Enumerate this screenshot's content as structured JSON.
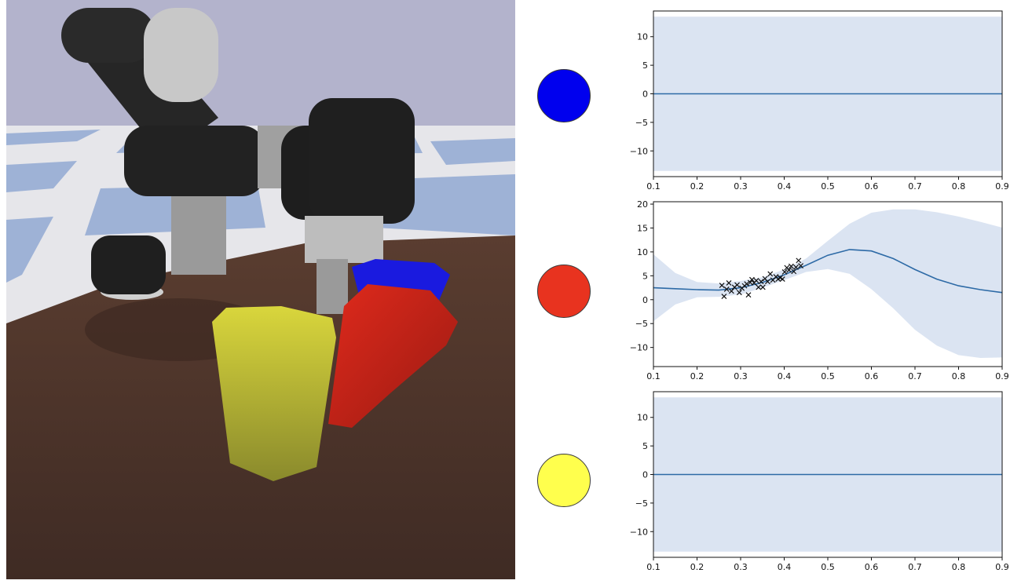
{
  "scene": {
    "colors": {
      "sky": "#b3b3cc",
      "table": "#4a3229",
      "floor_light": "#e6e6ea",
      "floor_dark": "#9eb2d6",
      "robot_dark": "#222222",
      "robot_light": "#9a9a9a",
      "blue_object": "#1a1adf",
      "red_object": "#d5281c",
      "yellow_object": "#cfcf3a"
    }
  },
  "legend": [
    {
      "name": "blue",
      "color": "#0000ee"
    },
    {
      "name": "red",
      "color": "#e8331f"
    },
    {
      "name": "yellow",
      "color": "#ffff4d"
    }
  ],
  "chart_data": [
    {
      "type": "line",
      "xlim": [
        0.1,
        0.9
      ],
      "ylim": [
        -14.5,
        14.5
      ],
      "xticks": [
        0.1,
        0.2,
        0.3,
        0.4,
        0.5,
        0.6,
        0.7,
        0.8,
        0.9
      ],
      "yticks": [
        -10,
        -5,
        0,
        5,
        10
      ],
      "grid": false,
      "line_color": "#2d6aa6",
      "band_color": "#dbe4f2",
      "series": [
        {
          "x": [
            0.1,
            0.9
          ],
          "y": [
            0,
            0
          ],
          "upper": [
            13.5,
            13.5
          ],
          "lower": [
            -13.5,
            -13.5
          ]
        }
      ],
      "observations": {
        "x": [],
        "y": []
      }
    },
    {
      "type": "line",
      "xlim": [
        0.1,
        0.9
      ],
      "ylim": [
        -14,
        20.5
      ],
      "xticks": [
        0.1,
        0.2,
        0.3,
        0.4,
        0.5,
        0.6,
        0.7,
        0.8,
        0.9
      ],
      "yticks": [
        -10,
        -5,
        0,
        5,
        10,
        15,
        20
      ],
      "grid": false,
      "line_color": "#2d6aa6",
      "band_color": "#dbe4f2",
      "series": [
        {
          "x": [
            0.1,
            0.15,
            0.2,
            0.25,
            0.3,
            0.35,
            0.4,
            0.45,
            0.5,
            0.55,
            0.6,
            0.65,
            0.7,
            0.75,
            0.8,
            0.85,
            0.9
          ],
          "y": [
            2.5,
            2.3,
            2.1,
            2.0,
            2.5,
            3.6,
            5.2,
            7.2,
            9.3,
            10.5,
            10.2,
            8.6,
            6.3,
            4.3,
            2.9,
            2.1,
            1.5
          ],
          "upper": [
            9.5,
            5.6,
            3.7,
            3.4,
            3.9,
            4.7,
            6.3,
            8.6,
            12.3,
            15.9,
            18.2,
            18.9,
            18.9,
            18.3,
            17.4,
            16.3,
            15.1
          ],
          "lower": [
            -4.5,
            -1.0,
            0.5,
            0.6,
            1.1,
            2.5,
            4.1,
            5.8,
            6.4,
            5.4,
            2.2,
            -1.8,
            -6.3,
            -9.6,
            -11.6,
            -12.2,
            -12.1
          ]
        }
      ],
      "observations": {
        "x": [
          0.257,
          0.262,
          0.268,
          0.273,
          0.279,
          0.286,
          0.292,
          0.297,
          0.303,
          0.309,
          0.314,
          0.318,
          0.322,
          0.326,
          0.331,
          0.336,
          0.341,
          0.347,
          0.351,
          0.356,
          0.362,
          0.368,
          0.374,
          0.381,
          0.386,
          0.391,
          0.396,
          0.401,
          0.406,
          0.411,
          0.416,
          0.422,
          0.427,
          0.433,
          0.438
        ],
        "y": [
          3.0,
          0.7,
          2.2,
          3.5,
          1.8,
          2.6,
          3.1,
          1.5,
          2.4,
          2.9,
          3.3,
          1.0,
          3.6,
          4.2,
          3.5,
          4.0,
          2.6,
          3.8,
          2.6,
          4.4,
          3.8,
          5.4,
          4.1,
          4.8,
          4.3,
          4.6,
          4.3,
          5.8,
          6.7,
          6.2,
          7.0,
          5.9,
          6.8,
          8.2,
          7.1
        ]
      }
    },
    {
      "type": "line",
      "xlim": [
        0.1,
        0.9
      ],
      "ylim": [
        -14.5,
        14.5
      ],
      "xticks": [
        0.1,
        0.2,
        0.3,
        0.4,
        0.5,
        0.6,
        0.7,
        0.8,
        0.9
      ],
      "yticks": [
        -10,
        -5,
        0,
        5,
        10
      ],
      "grid": false,
      "line_color": "#2d6aa6",
      "band_color": "#dbe4f2",
      "series": [
        {
          "x": [
            0.1,
            0.9
          ],
          "y": [
            0,
            0
          ],
          "upper": [
            13.5,
            13.5
          ],
          "lower": [
            -13.5,
            -13.5
          ]
        }
      ],
      "observations": {
        "x": [],
        "y": []
      }
    }
  ]
}
